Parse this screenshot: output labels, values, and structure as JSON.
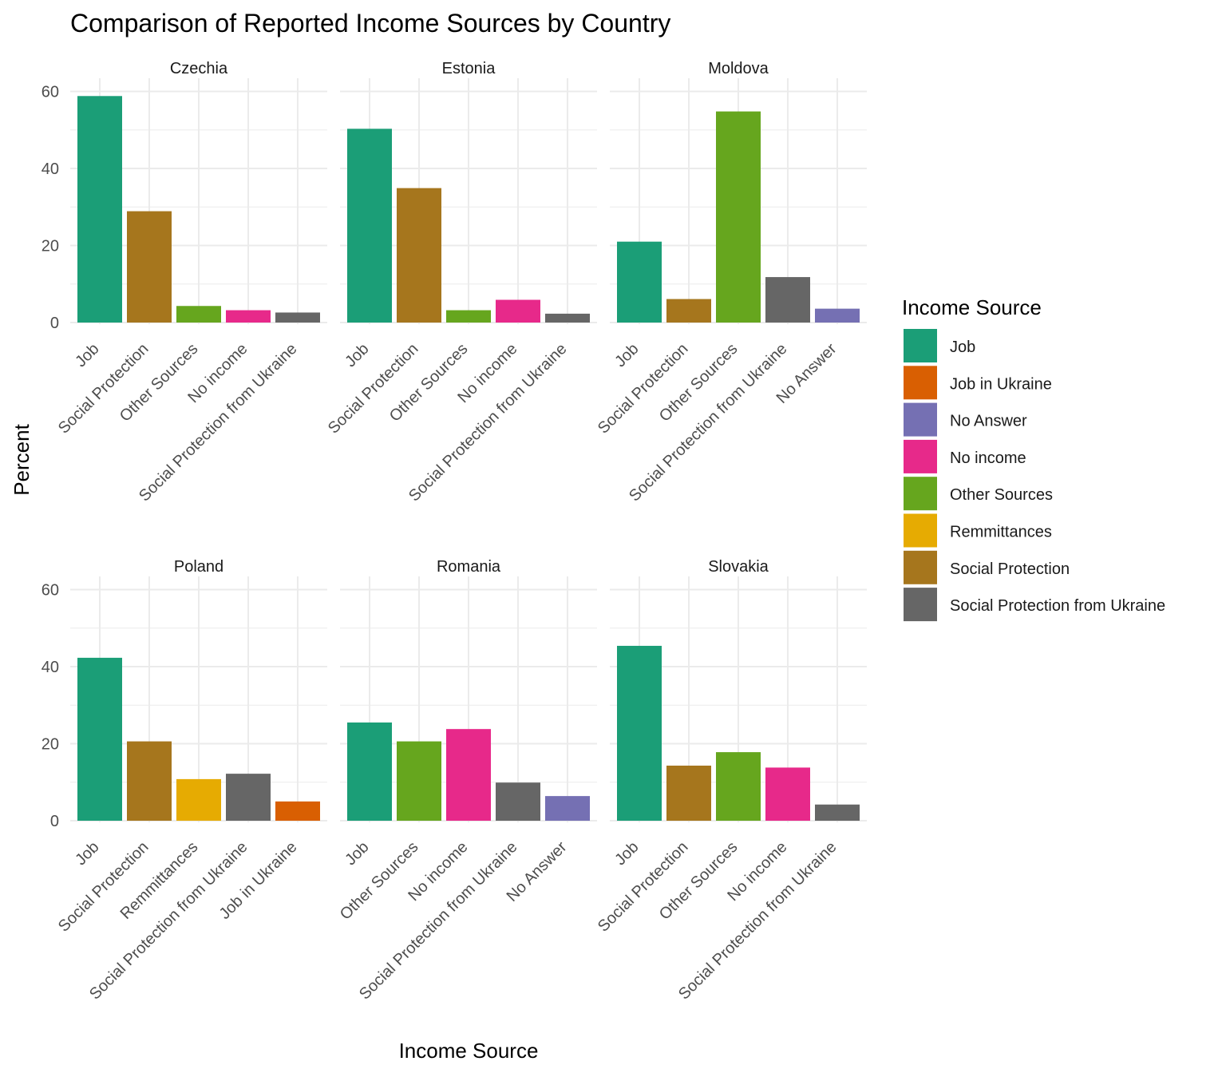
{
  "chart_data": {
    "type": "bar",
    "title": "Comparison of Reported Income Sources by Country",
    "xlabel": "Income Source",
    "ylabel": "Percent",
    "ylim": [
      0,
      62
    ],
    "yticks": [
      0,
      20,
      40,
      60
    ],
    "grid": true,
    "legend": {
      "title": "Income Source",
      "position": "right",
      "entries": [
        {
          "name": "Job",
          "color": "#1B9E77"
        },
        {
          "name": "Job in Ukraine",
          "color": "#D95F02"
        },
        {
          "name": "No Answer",
          "color": "#7570B3"
        },
        {
          "name": "No income",
          "color": "#E7298A"
        },
        {
          "name": "Other Sources",
          "color": "#66A61E"
        },
        {
          "name": "Remmittances",
          "color": "#E6AB02"
        },
        {
          "name": "Social Protection",
          "color": "#A6761D"
        },
        {
          "name": "Social Protection from Ukraine",
          "color": "#666666"
        }
      ]
    },
    "panels": [
      {
        "country": "Czechia",
        "categories": [
          "Job",
          "Social Protection",
          "Other Sources",
          "No income",
          "Social Protection from Ukraine"
        ],
        "values": [
          58.8,
          28.9,
          4.3,
          3.2,
          2.6
        ]
      },
      {
        "country": "Estonia",
        "categories": [
          "Job",
          "Social Protection",
          "Other Sources",
          "No income",
          "Social Protection from Ukraine"
        ],
        "values": [
          50.3,
          34.9,
          3.2,
          5.9,
          2.3
        ]
      },
      {
        "country": "Moldova",
        "categories": [
          "Job",
          "Social Protection",
          "Other Sources",
          "Social Protection from Ukraine",
          "No Answer"
        ],
        "values": [
          21.0,
          6.1,
          54.8,
          11.8,
          3.6
        ]
      },
      {
        "country": "Poland",
        "categories": [
          "Job",
          "Social Protection",
          "Remmittances",
          "Social Protection from Ukraine",
          "Job in Ukraine"
        ],
        "values": [
          42.3,
          20.6,
          10.8,
          12.2,
          5.0
        ]
      },
      {
        "country": "Romania",
        "categories": [
          "Job",
          "Other Sources",
          "No income",
          "Social Protection from Ukraine",
          "No Answer"
        ],
        "values": [
          25.5,
          20.6,
          23.8,
          9.9,
          6.4
        ]
      },
      {
        "country": "Slovakia",
        "categories": [
          "Job",
          "Social Protection",
          "Other Sources",
          "No income",
          "Social Protection from Ukraine"
        ],
        "values": [
          45.4,
          14.3,
          17.8,
          13.8,
          4.2
        ]
      }
    ]
  }
}
